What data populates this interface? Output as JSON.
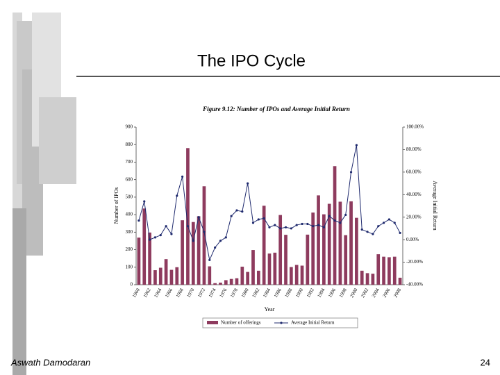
{
  "slide_title": "The IPO Cycle",
  "footer": {
    "author": "Aswath Damodaran",
    "page": "24"
  },
  "chart_data": {
    "type": "bar-line",
    "title": "Figure 9.12: Number of IPOs and Average Initial Return",
    "x_label": "Year",
    "y_label": "Number of IPOs",
    "y2_label": "Average Initial Return",
    "categories": [
      "1960",
      null,
      "1962",
      null,
      "1964",
      null,
      "1966",
      null,
      "1968",
      null,
      "1970",
      null,
      "1972",
      null,
      "1974",
      null,
      "1976",
      null,
      "1978",
      null,
      "1980",
      null,
      "1982",
      null,
      "1984",
      null,
      "1986",
      null,
      "1988",
      null,
      "1990",
      null,
      "1992",
      null,
      "1994",
      null,
      "1996",
      null,
      "1998",
      null,
      "2000",
      null,
      "2002",
      null,
      "2004",
      null,
      "2006",
      null,
      "2008"
    ],
    "series": [
      {
        "name": "Number of offerings",
        "color": "#8e3b5e",
        "values": [
          269,
          435,
          298,
          83,
          97,
          146,
          85,
          100,
          368,
          780,
          358,
          391,
          562,
          105,
          9,
          12,
          26,
          33,
          37,
          103,
          73,
          198,
          80,
          451,
          178,
          183,
          398,
          285,
          101,
          113,
          109,
          286,
          412,
          510,
          402,
          462,
          677,
          474,
          283,
          476,
          382,
          80,
          66,
          63,
          174,
          160,
          157,
          160,
          40
        ]
      },
      {
        "name": "Average Initial Return",
        "color": "#1f2a6e",
        "axis": "y2",
        "values": [
          17,
          34,
          0,
          2,
          4,
          12,
          5,
          39,
          56,
          12,
          -1,
          20,
          7,
          -18,
          -7,
          -1,
          2,
          21,
          26,
          25,
          50,
          15,
          18,
          19,
          11,
          13,
          10,
          11,
          10,
          13,
          14,
          14,
          12,
          13,
          11,
          21,
          17,
          15,
          22,
          60,
          84,
          9,
          7,
          5,
          12,
          15,
          18,
          15,
          6
        ]
      }
    ],
    "ylim": [
      0,
      900
    ],
    "yticks": [
      0,
      100,
      200,
      300,
      400,
      500,
      600,
      700,
      800,
      900
    ],
    "y2lim": [
      -40,
      100
    ],
    "y2ticks": [
      {
        "value": -40,
        "label": "-40.00%"
      },
      {
        "value": -20,
        "label": "-20.00%"
      },
      {
        "value": 0,
        "label": "0.00%"
      },
      {
        "value": 20,
        "label": "20.00%"
      },
      {
        "value": 40,
        "label": "40.00%"
      },
      {
        "value": 60,
        "label": "60.00%"
      },
      {
        "value": 80,
        "label": "80.00%"
      },
      {
        "value": 100,
        "label": "100.00%"
      }
    ],
    "legend": "bottom"
  }
}
